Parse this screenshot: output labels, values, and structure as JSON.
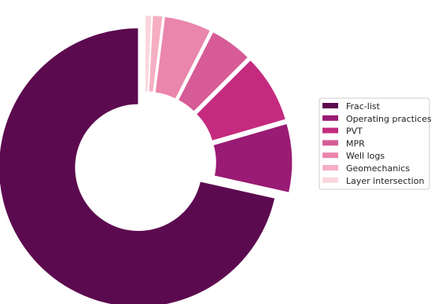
{
  "chart_data": {
    "type": "pie",
    "style": "donut",
    "title": "",
    "legend_position": "right",
    "categories": [
      "Frac-list",
      "Operating practices",
      "PVT",
      "MPR",
      "Well logs",
      "Geomechanics",
      "Layer intersection"
    ],
    "values": [
      71.5,
      8.0,
      8.0,
      5.0,
      5.5,
      1.2,
      0.8
    ],
    "colors": [
      "#5c0a4f",
      "#9a1b73",
      "#c42b7e",
      "#d65b96",
      "#ea85ab",
      "#f5aec3",
      "#fbd6de"
    ],
    "exploded": true
  }
}
